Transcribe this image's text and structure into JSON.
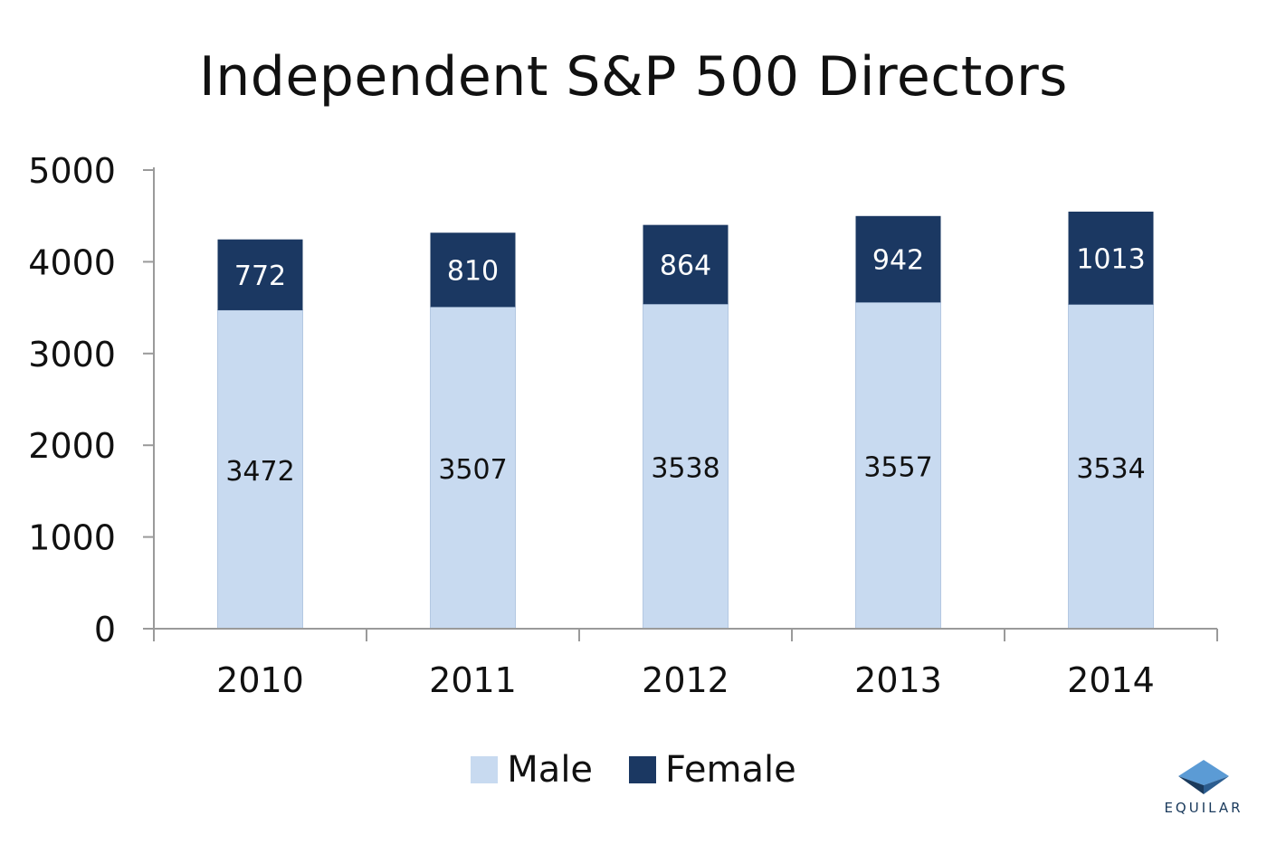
{
  "colors": {
    "male": "#c8daf0",
    "female": "#1b3862",
    "axis": "#9a9a9a",
    "male_label": "#111111",
    "female_label": "#ffffff",
    "logo_light": "#5b9bd5",
    "logo_dark": "#1a3a5c"
  },
  "logo": {
    "name": "EQUILAR"
  },
  "chart_data": {
    "type": "bar",
    "stacked": true,
    "title": "Independent S&P 500 Directors",
    "xlabel": "",
    "ylabel": "",
    "categories": [
      "2010",
      "2011",
      "2012",
      "2013",
      "2014"
    ],
    "series": [
      {
        "name": "Male",
        "values": [
          3472,
          3507,
          3538,
          3557,
          3534
        ]
      },
      {
        "name": "Female",
        "values": [
          772,
          810,
          864,
          942,
          1013
        ]
      }
    ],
    "ylim": [
      0,
      5000
    ],
    "yticks": [
      0,
      1000,
      2000,
      3000,
      4000,
      5000
    ],
    "grid": false,
    "legend": "bottom-center",
    "data_labels": true
  }
}
